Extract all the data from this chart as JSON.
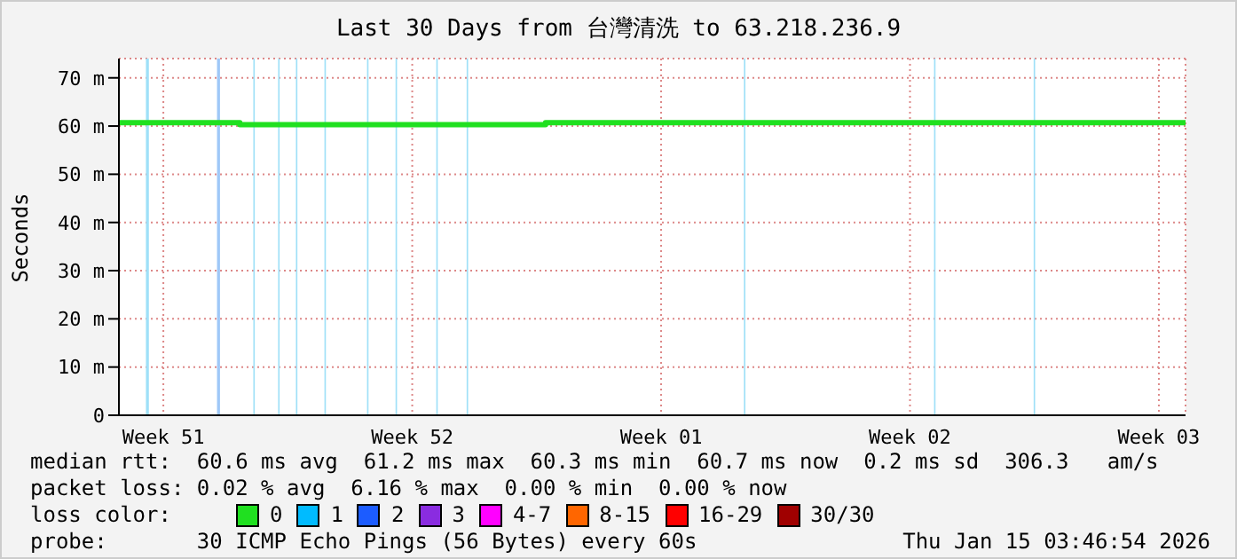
{
  "chart_data": {
    "type": "step",
    "title": "Last 30 Days from 台灣清洗 to 63.218.236.9",
    "ylabel": "Seconds",
    "xlim": [
      "2025-12-16T03:46",
      "2026-01-15T03:46"
    ],
    "xticks": [
      {
        "value": "2025-12-17T09:46",
        "label": "Week 51"
      },
      {
        "value": "2025-12-24T09:46",
        "label": "Week 52"
      },
      {
        "value": "2025-12-31T09:46",
        "label": "Week 01"
      },
      {
        "value": "2026-01-07T09:46",
        "label": "Week 02"
      },
      {
        "value": "2026-01-14T09:46",
        "label": "Week 03"
      }
    ],
    "ylim": [
      0,
      74
    ],
    "yticks": [
      0,
      {
        "value": 10,
        "label": "10 m"
      },
      {
        "value": 20,
        "label": "20 m"
      },
      {
        "value": 30,
        "label": "30 m"
      },
      {
        "value": 40,
        "label": "40 m"
      },
      {
        "value": 50,
        "label": "50 m"
      },
      {
        "value": 60,
        "label": "60 m"
      },
      {
        "value": 70,
        "label": "70 m"
      }
    ],
    "x": [
      "2025-12-16T03:46",
      "2025-12-19T13:22",
      "2025-12-28T03:46",
      "2026-01-15T03:46"
    ],
    "series": [
      {
        "name": "0",
        "color": "#20e020",
        "values": [
          60.7,
          60.3,
          60.7,
          60.7
        ]
      },
      {
        "name": "1",
        "color": "#00bbff",
        "values": [
          null,
          null,
          null,
          null
        ]
      },
      {
        "name": "2",
        "color": "#1c5cff",
        "values": [
          null,
          null,
          null,
          null
        ]
      },
      {
        "name": "3",
        "color": "#8a2ce0",
        "values": [
          null,
          null,
          null,
          null
        ]
      },
      {
        "name": "4-7",
        "color": "#ff00ff",
        "values": [
          null,
          null,
          null,
          null
        ]
      },
      {
        "name": "8-15",
        "color": "#ff6600",
        "values": [
          null,
          null,
          null,
          null
        ]
      },
      {
        "name": "16-29",
        "color": "#ff0000",
        "values": [
          null,
          null,
          null,
          null
        ]
      },
      {
        "name": "30/30",
        "color": "#a00000",
        "values": [
          null,
          null,
          null,
          null
        ]
      }
    ],
    "bands": [
      {
        "axis": "x",
        "from": "2025-12-16T22:00",
        "to": "2025-12-17T00:00",
        "color": "#9fe0f8"
      },
      {
        "axis": "x",
        "from": "2025-12-18T22:00",
        "to": "2025-12-19T00:00",
        "color": "#9fc8f8"
      },
      {
        "axis": "x",
        "from": "2025-12-19T22:30",
        "to": "2025-12-19T23:30",
        "color": "#9fe0f8"
      },
      {
        "axis": "x",
        "from": "2025-12-20T15:15",
        "to": "2025-12-20T16:15",
        "color": "#9fe0f8"
      },
      {
        "axis": "x",
        "from": "2025-12-21T03:15",
        "to": "2025-12-21T04:15",
        "color": "#9fe0f8"
      },
      {
        "axis": "x",
        "from": "2025-12-21T22:30",
        "to": "2025-12-21T23:30",
        "color": "#9fe0f8"
      },
      {
        "axis": "x",
        "from": "2025-12-23T03:15",
        "to": "2025-12-23T04:15",
        "color": "#9fe0f8"
      },
      {
        "axis": "x",
        "from": "2025-12-23T22:30",
        "to": "2025-12-23T23:30",
        "color": "#9fe0f8"
      },
      {
        "axis": "x",
        "from": "2025-12-25T02:00",
        "to": "2025-12-25T03:00",
        "color": "#9fe0f8"
      },
      {
        "axis": "x",
        "from": "2025-12-25T22:30",
        "to": "2025-12-25T23:30",
        "color": "#9fe0f8"
      },
      {
        "axis": "x",
        "from": "2026-01-02T17:40",
        "to": "2026-01-02T18:40",
        "color": "#9fe0f8"
      },
      {
        "axis": "x",
        "from": "2026-01-08T02:00",
        "to": "2026-01-08T03:00",
        "color": "#9fe0f8"
      },
      {
        "axis": "x",
        "from": "2026-01-10T21:15",
        "to": "2026-01-10T22:15",
        "color": "#9fe0f8"
      }
    ],
    "grid": true,
    "legend": "bottom",
    "legend_title": "loss color:",
    "annotations": [
      "median rtt:  60.6 ms avg  61.2 ms max  60.3 ms min  60.7 ms now  0.2 ms sd  306.3   am/s",
      "packet loss: 0.02 % avg  6.16 % max  0.00 % min  0.00 % now",
      "probe:       30 ICMP Echo Pings (56 Bytes) every 60s",
      "Thu Jan 15 03:46:54 2026"
    ]
  }
}
